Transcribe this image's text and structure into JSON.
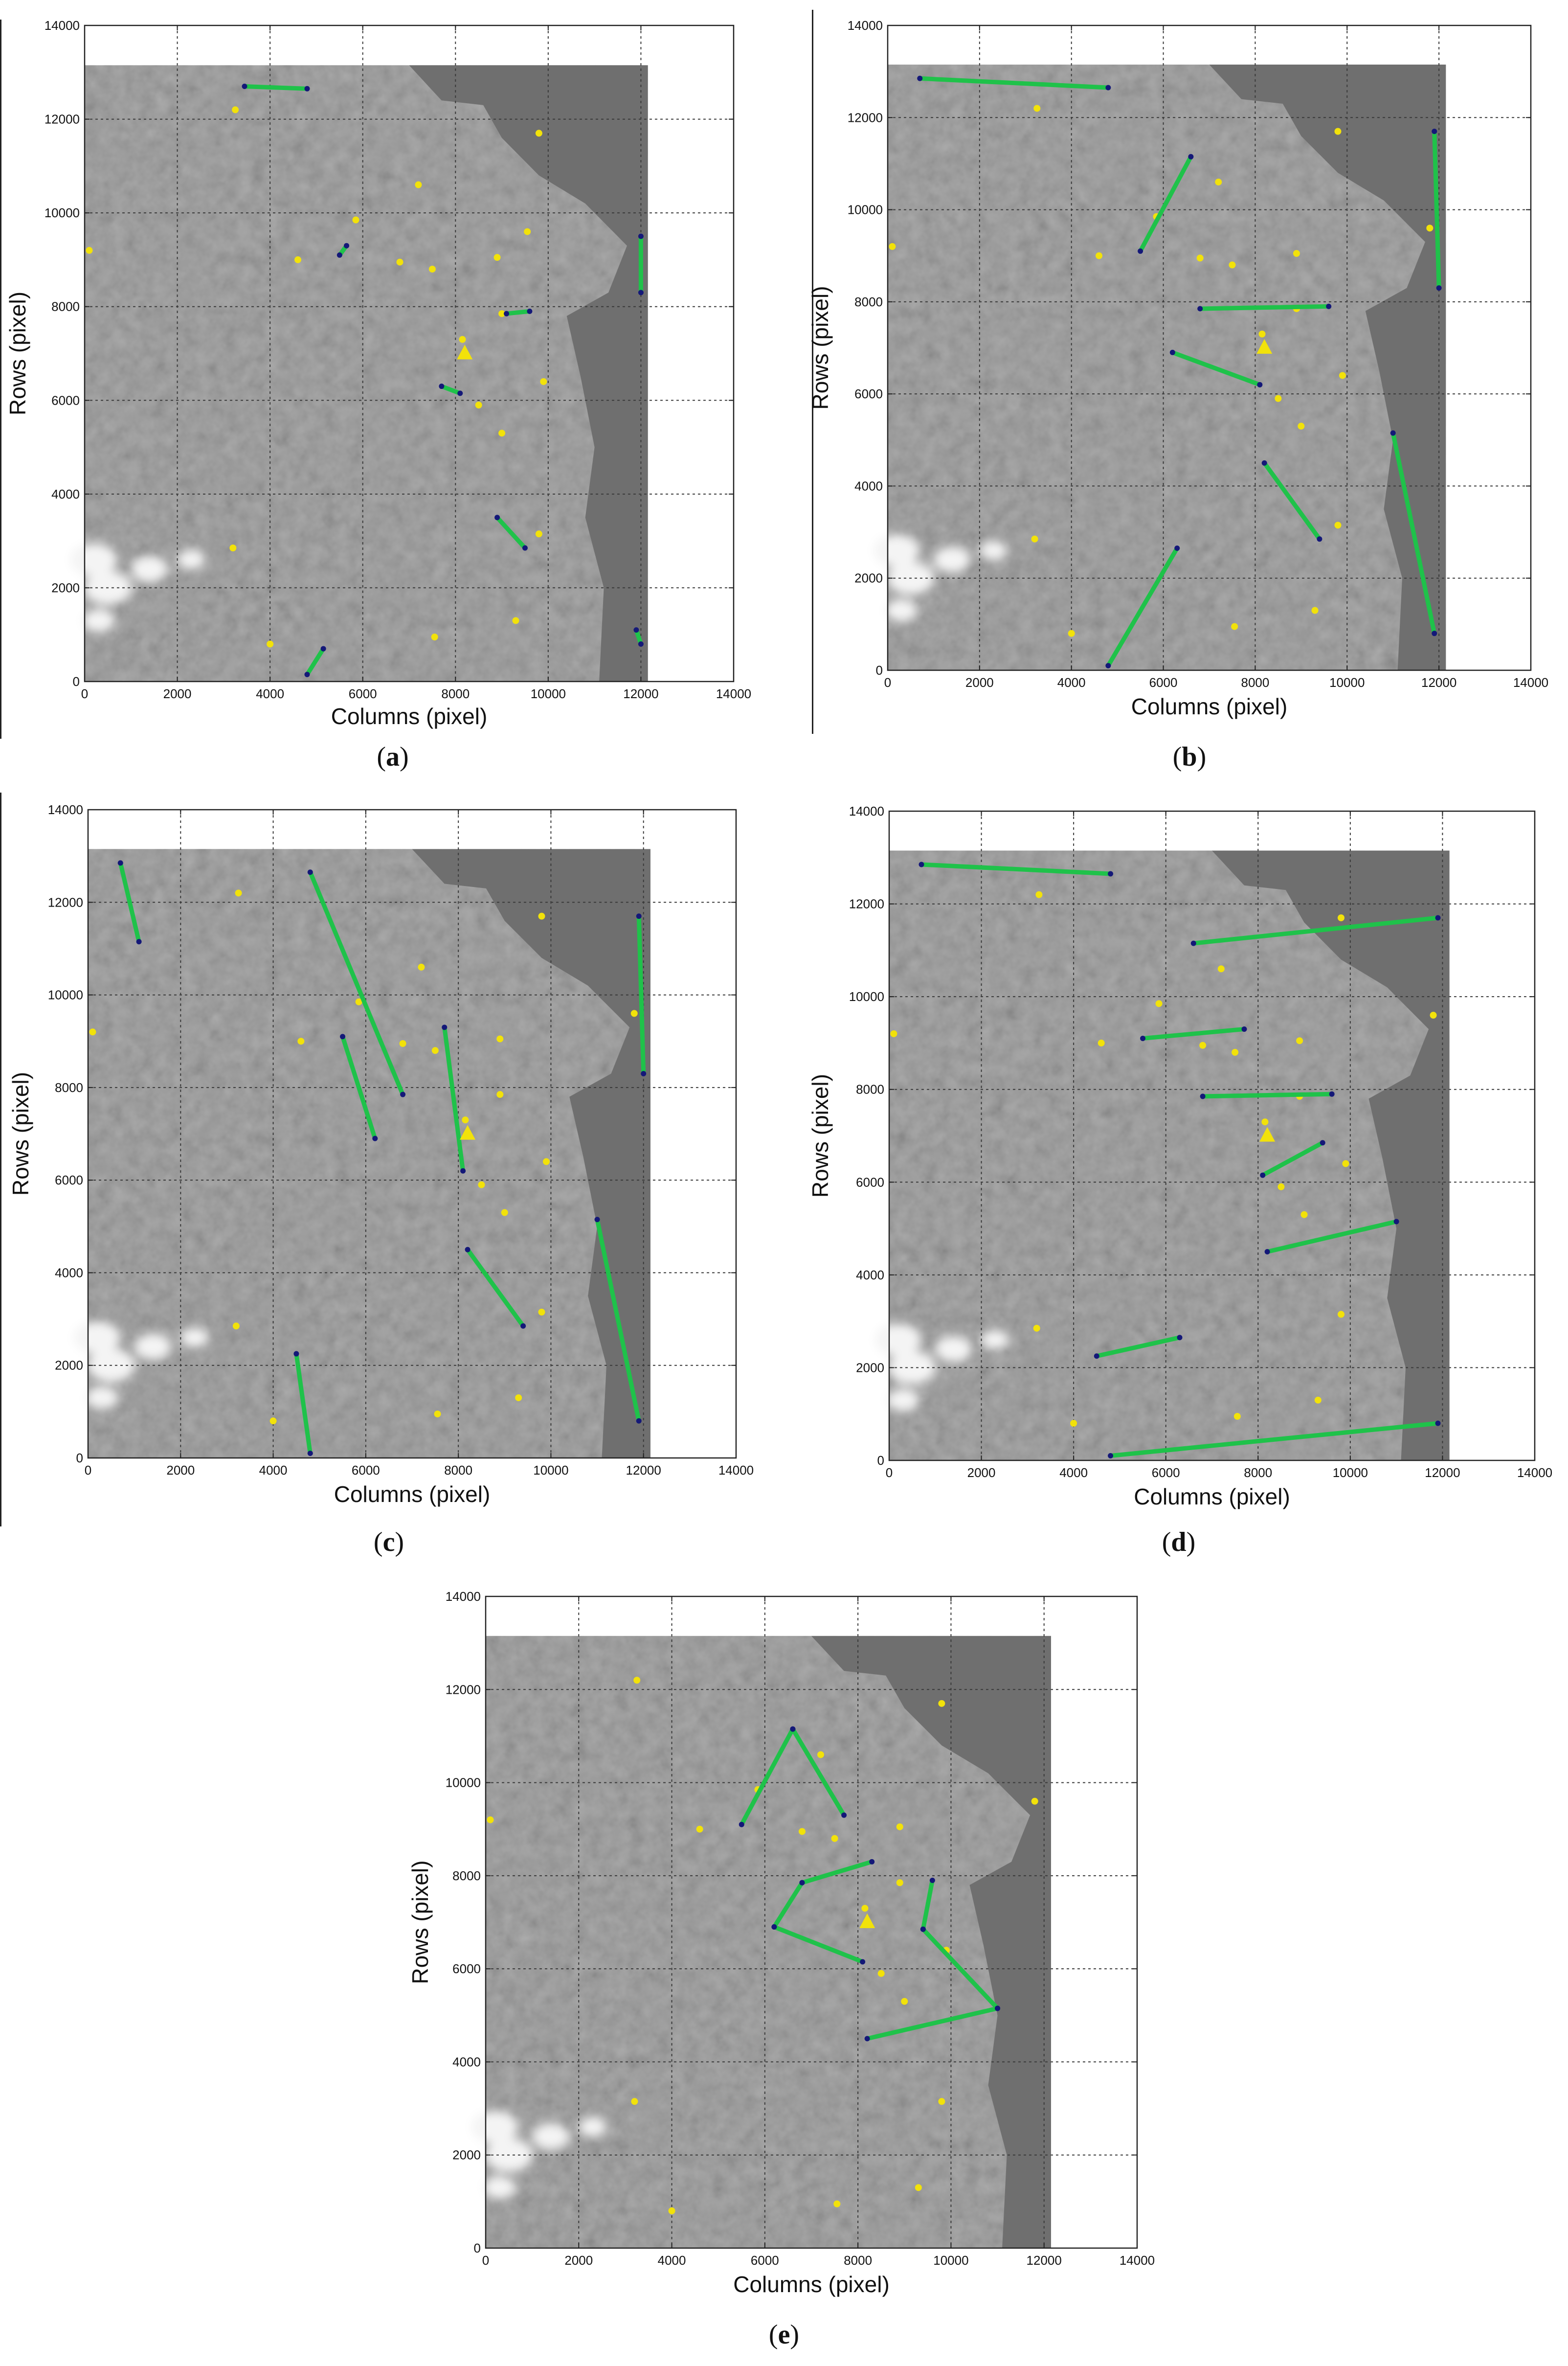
{
  "figure": {
    "panel_labels": [
      "(a)",
      "(b)",
      "(c)",
      "(d)",
      "(e)"
    ]
  },
  "colors": {
    "line": "#1fc24a",
    "endpoint": "#141878",
    "gcp": "#f2e20a",
    "reference": "#f2e20a",
    "image_bg": "#8e8e8e",
    "water": "#6f6f6f",
    "grid": "#3a3a3a"
  },
  "chart_data": [
    {
      "type": "scatter",
      "panel": "(a)",
      "xlabel": "Columns (pixel)",
      "ylabel": "Rows (pixel)",
      "xlim": [
        0,
        14000
      ],
      "ylim": [
        0,
        14000
      ],
      "xticks": [
        0,
        2000,
        4000,
        6000,
        8000,
        10000,
        12000,
        14000
      ],
      "yticks": [
        0,
        2000,
        4000,
        6000,
        8000,
        10000,
        12000,
        14000
      ],
      "grid": true,
      "image_extent": {
        "x": [
          0,
          12150
        ],
        "y": [
          0,
          13150
        ]
      },
      "gcp_points": [
        [
          3250,
          12200
        ],
        [
          9800,
          11700
        ],
        [
          7200,
          10600
        ],
        [
          5850,
          9850
        ],
        [
          9550,
          9600
        ],
        [
          100,
          9200
        ],
        [
          4600,
          9000
        ],
        [
          6800,
          8950
        ],
        [
          7500,
          8800
        ],
        [
          8900,
          9050
        ],
        [
          8150,
          7300
        ],
        [
          9000,
          7850
        ],
        [
          9900,
          6400
        ],
        [
          8500,
          5900
        ],
        [
          9000,
          5300
        ],
        [
          3200,
          2850
        ],
        [
          9800,
          3150
        ],
        [
          4000,
          800
        ],
        [
          7550,
          950
        ],
        [
          9300,
          1300
        ]
      ],
      "reference_point": [
        8200,
        7000
      ],
      "segments": [
        [
          [
            3450,
            12700
          ],
          [
            4800,
            12650
          ]
        ],
        [
          [
            12000,
            9500
          ],
          [
            12000,
            8300
          ]
        ],
        [
          [
            5500,
            9100
          ],
          [
            5650,
            9300
          ]
        ],
        [
          [
            9100,
            7850
          ],
          [
            9600,
            7900
          ]
        ],
        [
          [
            7700,
            6300
          ],
          [
            8100,
            6150
          ]
        ],
        [
          [
            8900,
            3500
          ],
          [
            9500,
            2850
          ]
        ],
        [
          [
            4800,
            150
          ],
          [
            5150,
            700
          ]
        ],
        [
          [
            11900,
            1100
          ],
          [
            12000,
            800
          ]
        ]
      ]
    },
    {
      "type": "scatter",
      "panel": "(b)",
      "xlabel": "Columns (pixel)",
      "ylabel": "Rows (pixel)",
      "xlim": [
        0,
        14000
      ],
      "ylim": [
        0,
        14000
      ],
      "xticks": [
        0,
        2000,
        4000,
        6000,
        8000,
        10000,
        12000,
        14000
      ],
      "yticks": [
        0,
        2000,
        4000,
        6000,
        8000,
        10000,
        12000,
        14000
      ],
      "grid": true,
      "image_extent": {
        "x": [
          0,
          12150
        ],
        "y": [
          0,
          13150
        ]
      },
      "gcp_points": [
        [
          3250,
          12200
        ],
        [
          9800,
          11700
        ],
        [
          7200,
          10600
        ],
        [
          5850,
          9850
        ],
        [
          11800,
          9600
        ],
        [
          100,
          9200
        ],
        [
          4600,
          9000
        ],
        [
          6800,
          8950
        ],
        [
          7500,
          8800
        ],
        [
          8900,
          9050
        ],
        [
          8150,
          7300
        ],
        [
          8900,
          7850
        ],
        [
          9900,
          6400
        ],
        [
          8500,
          5900
        ],
        [
          9000,
          5300
        ],
        [
          3200,
          2850
        ],
        [
          9800,
          3150
        ],
        [
          4000,
          800
        ],
        [
          7550,
          950
        ],
        [
          9300,
          1300
        ]
      ],
      "reference_point": [
        8200,
        7000
      ],
      "segments": [
        [
          [
            700,
            12850
          ],
          [
            4800,
            12650
          ]
        ],
        [
          [
            5500,
            9100
          ],
          [
            6600,
            11150
          ]
        ],
        [
          [
            11900,
            11700
          ],
          [
            12000,
            8300
          ]
        ],
        [
          [
            6800,
            7850
          ],
          [
            9600,
            7900
          ]
        ],
        [
          [
            6200,
            6900
          ],
          [
            8100,
            6200
          ]
        ],
        [
          [
            8200,
            4500
          ],
          [
            9400,
            2850
          ]
        ],
        [
          [
            11000,
            5150
          ],
          [
            11900,
            800
          ]
        ],
        [
          [
            4800,
            100
          ],
          [
            6300,
            2650
          ]
        ]
      ]
    },
    {
      "type": "scatter",
      "panel": "(c)",
      "xlabel": "Columns (pixel)",
      "ylabel": "Rows (pixel)",
      "xlim": [
        0,
        14000
      ],
      "ylim": [
        0,
        14000
      ],
      "xticks": [
        0,
        2000,
        4000,
        6000,
        8000,
        10000,
        12000,
        14000
      ],
      "yticks": [
        0,
        2000,
        4000,
        6000,
        8000,
        10000,
        12000,
        14000
      ],
      "grid": true,
      "image_extent": {
        "x": [
          0,
          12150
        ],
        "y": [
          0,
          13150
        ]
      },
      "gcp_points": [
        [
          3250,
          12200
        ],
        [
          9800,
          11700
        ],
        [
          7200,
          10600
        ],
        [
          5850,
          9850
        ],
        [
          11800,
          9600
        ],
        [
          100,
          9200
        ],
        [
          4600,
          9000
        ],
        [
          6800,
          8950
        ],
        [
          7500,
          8800
        ],
        [
          8900,
          9050
        ],
        [
          8150,
          7300
        ],
        [
          8900,
          7850
        ],
        [
          9900,
          6400
        ],
        [
          8500,
          5900
        ],
        [
          9000,
          5300
        ],
        [
          3200,
          2850
        ],
        [
          9800,
          3150
        ],
        [
          4000,
          800
        ],
        [
          7550,
          950
        ],
        [
          9300,
          1300
        ]
      ],
      "reference_point": [
        8200,
        7000
      ],
      "segments": [
        [
          [
            700,
            12850
          ],
          [
            1100,
            11150
          ]
        ],
        [
          [
            4800,
            12650
          ],
          [
            6800,
            7850
          ]
        ],
        [
          [
            5500,
            9100
          ],
          [
            6200,
            6900
          ]
        ],
        [
          [
            7700,
            9300
          ],
          [
            8100,
            6200
          ]
        ],
        [
          [
            11900,
            11700
          ],
          [
            12000,
            8300
          ]
        ],
        [
          [
            8200,
            4500
          ],
          [
            9400,
            2850
          ]
        ],
        [
          [
            11000,
            5150
          ],
          [
            11900,
            800
          ]
        ],
        [
          [
            4500,
            2250
          ],
          [
            4800,
            100
          ]
        ]
      ]
    },
    {
      "type": "scatter",
      "panel": "(d)",
      "xlabel": "Columns (pixel)",
      "ylabel": "Rows (pixel)",
      "xlim": [
        0,
        14000
      ],
      "ylim": [
        0,
        14000
      ],
      "xticks": [
        0,
        2000,
        4000,
        6000,
        8000,
        10000,
        12000,
        14000
      ],
      "yticks": [
        0,
        2000,
        4000,
        6000,
        8000,
        10000,
        12000,
        14000
      ],
      "grid": true,
      "image_extent": {
        "x": [
          0,
          12150
        ],
        "y": [
          0,
          13150
        ]
      },
      "gcp_points": [
        [
          3250,
          12200
        ],
        [
          9800,
          11700
        ],
        [
          7200,
          10600
        ],
        [
          5850,
          9850
        ],
        [
          11800,
          9600
        ],
        [
          100,
          9200
        ],
        [
          4600,
          9000
        ],
        [
          6800,
          8950
        ],
        [
          7500,
          8800
        ],
        [
          8900,
          9050
        ],
        [
          8150,
          7300
        ],
        [
          8900,
          7850
        ],
        [
          9900,
          6400
        ],
        [
          8500,
          5900
        ],
        [
          9000,
          5300
        ],
        [
          3200,
          2850
        ],
        [
          9800,
          3150
        ],
        [
          4000,
          800
        ],
        [
          7550,
          950
        ],
        [
          9300,
          1300
        ]
      ],
      "reference_point": [
        8200,
        7000
      ],
      "segments": [
        [
          [
            700,
            12850
          ],
          [
            4800,
            12650
          ]
        ],
        [
          [
            6600,
            11150
          ],
          [
            11900,
            11700
          ]
        ],
        [
          [
            5500,
            9100
          ],
          [
            7700,
            9300
          ]
        ],
        [
          [
            6800,
            7850
          ],
          [
            9600,
            7900
          ]
        ],
        [
          [
            8100,
            6150
          ],
          [
            9400,
            6850
          ]
        ],
        [
          [
            8200,
            4500
          ],
          [
            11000,
            5150
          ]
        ],
        [
          [
            4500,
            2250
          ],
          [
            6300,
            2650
          ]
        ],
        [
          [
            4800,
            100
          ],
          [
            11900,
            800
          ]
        ]
      ]
    },
    {
      "type": "scatter",
      "panel": "(e)",
      "xlabel": "Columns (pixel)",
      "ylabel": "Rows (pixel)",
      "xlim": [
        0,
        14000
      ],
      "ylim": [
        0,
        14000
      ],
      "xticks": [
        0,
        2000,
        4000,
        6000,
        8000,
        10000,
        12000,
        14000
      ],
      "yticks": [
        0,
        2000,
        4000,
        6000,
        8000,
        10000,
        12000,
        14000
      ],
      "grid": true,
      "image_extent": {
        "x": [
          0,
          12150
        ],
        "y": [
          0,
          13150
        ]
      },
      "gcp_points": [
        [
          3250,
          12200
        ],
        [
          9800,
          11700
        ],
        [
          7200,
          10600
        ],
        [
          5850,
          9850
        ],
        [
          11800,
          9600
        ],
        [
          100,
          9200
        ],
        [
          4600,
          9000
        ],
        [
          6800,
          8950
        ],
        [
          7500,
          8800
        ],
        [
          8900,
          9050
        ],
        [
          8150,
          7300
        ],
        [
          8900,
          7850
        ],
        [
          9900,
          6400
        ],
        [
          8500,
          5900
        ],
        [
          9000,
          5300
        ],
        [
          3200,
          3150
        ],
        [
          9800,
          3150
        ],
        [
          4000,
          800
        ],
        [
          7550,
          950
        ],
        [
          9300,
          1300
        ]
      ],
      "reference_point": [
        8200,
        7000
      ],
      "segments": [
        [
          [
            5500,
            9100
          ],
          [
            6600,
            11150
          ]
        ],
        [
          [
            6600,
            11150
          ],
          [
            7700,
            9300
          ]
        ],
        [
          [
            6800,
            7850
          ],
          [
            8300,
            8300
          ]
        ],
        [
          [
            6200,
            6900
          ],
          [
            6800,
            7850
          ]
        ],
        [
          [
            6200,
            6900
          ],
          [
            8100,
            6150
          ]
        ],
        [
          [
            9400,
            6850
          ],
          [
            9600,
            7900
          ]
        ],
        [
          [
            9400,
            6850
          ],
          [
            11000,
            5150
          ]
        ],
        [
          [
            8200,
            4500
          ],
          [
            11000,
            5150
          ]
        ]
      ]
    }
  ]
}
